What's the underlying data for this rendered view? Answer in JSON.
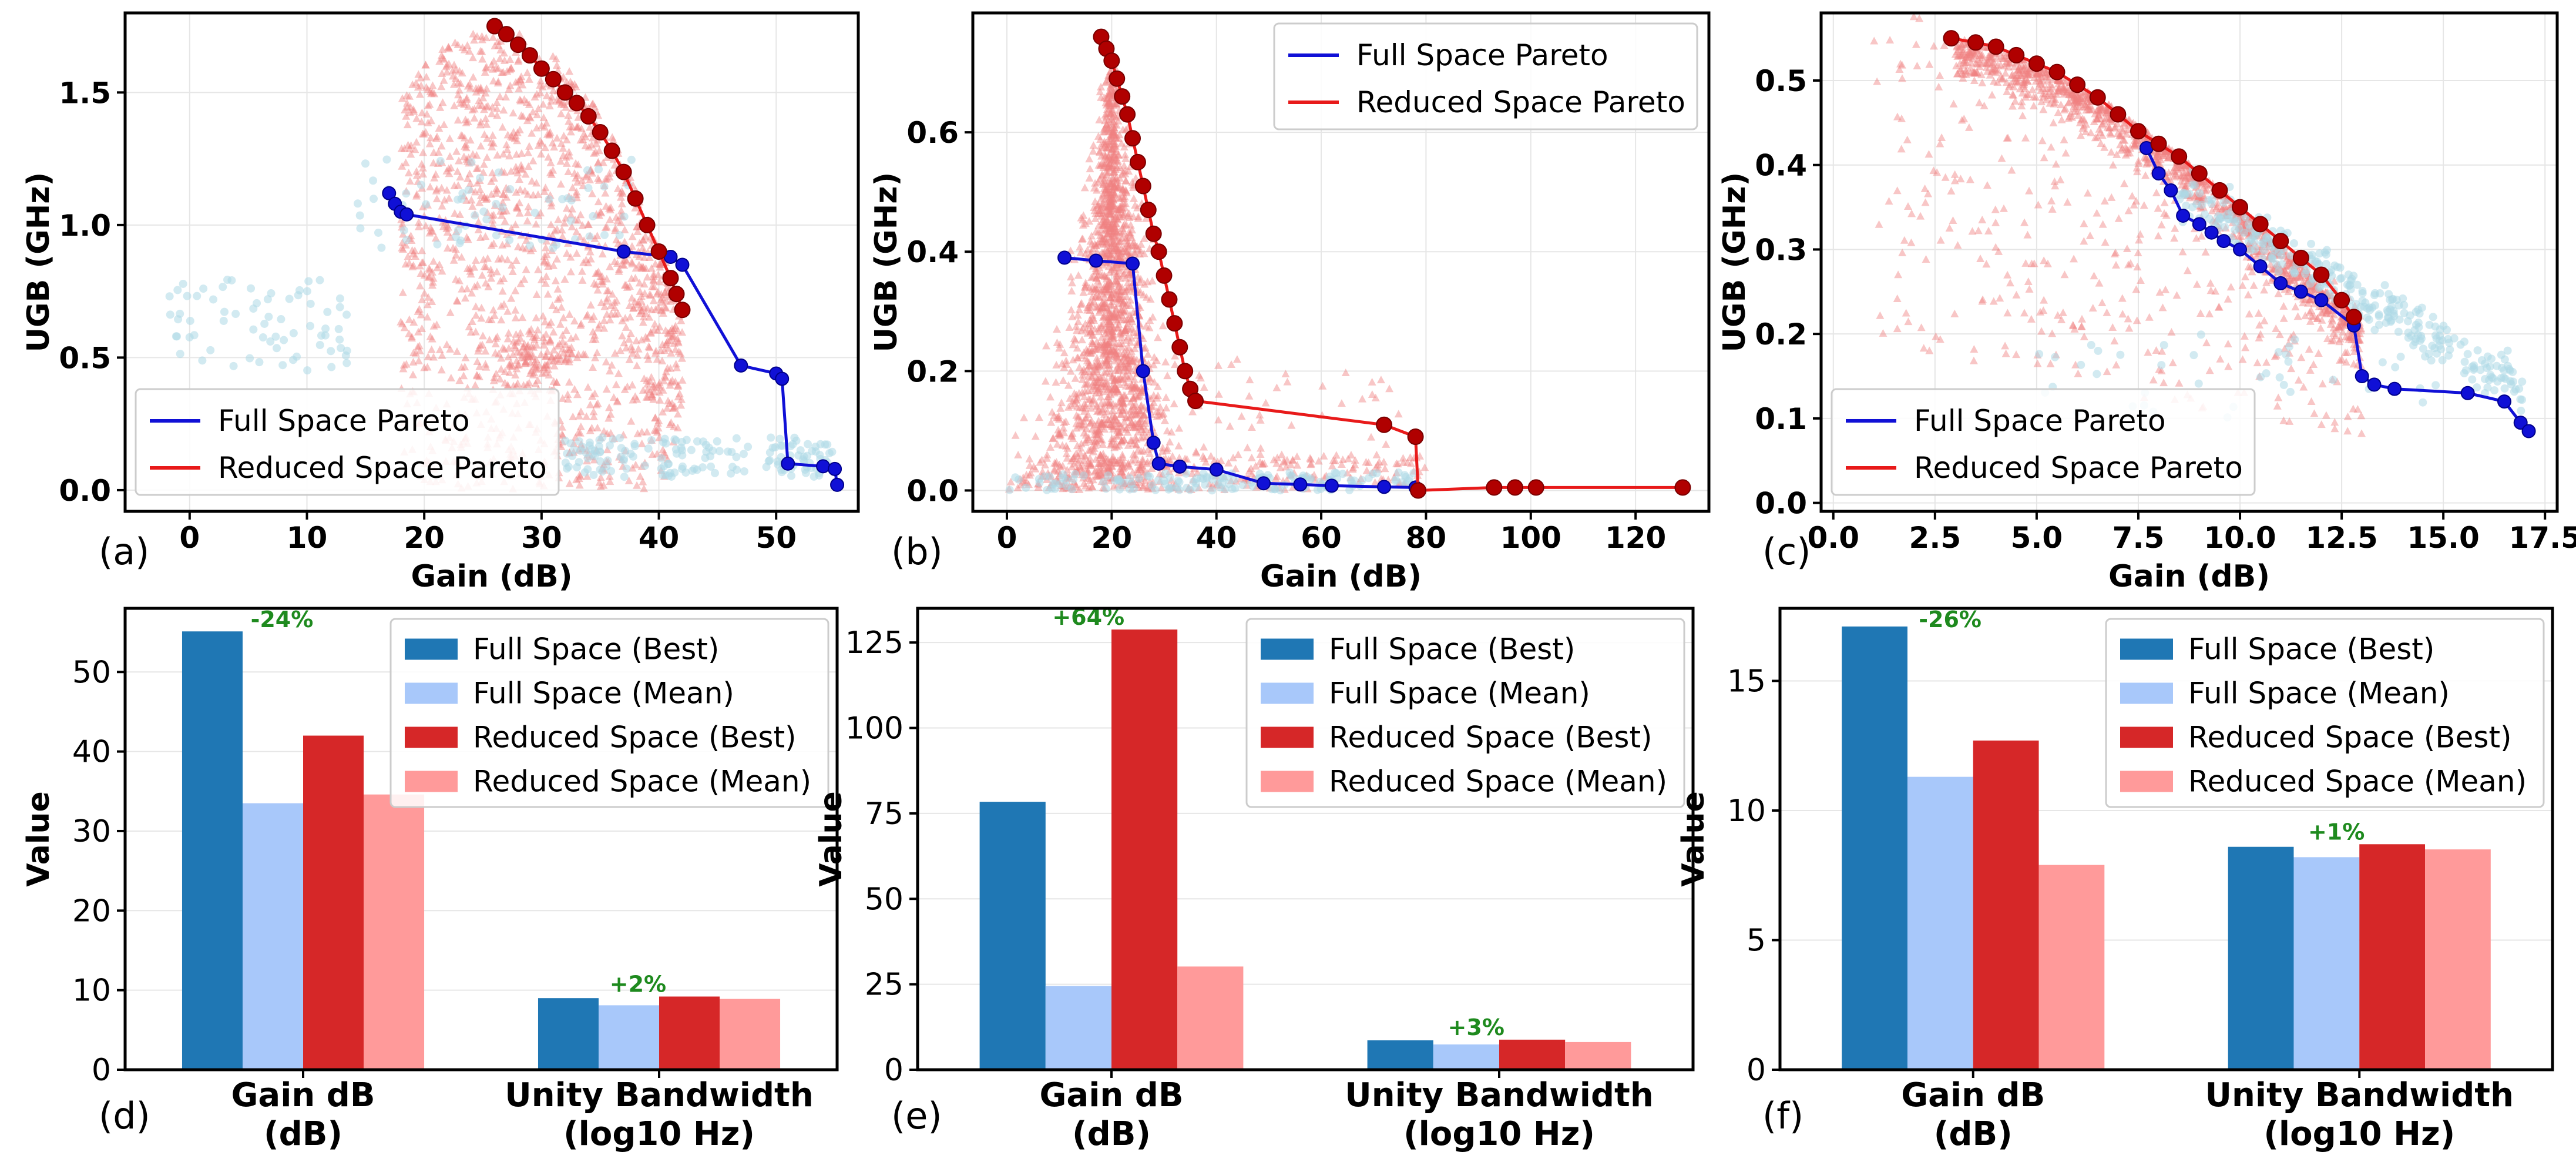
{
  "colors": {
    "full_pareto": "#1010d6",
    "full_points": "#add8e6",
    "reduced_pareto": "#e81a1a",
    "reduced_points": "#f08080",
    "reduced_pareto_marker": "#b00000",
    "full_best": "#1f77b4",
    "full_mean": "#a8c8fa",
    "reduced_best": "#d62728",
    "reduced_mean": "#ff9a9a",
    "annotation": "#1e8a1e"
  },
  "chart_data": [
    {
      "type": "scatter",
      "panel": "(a)",
      "xlabel": "Gain (dB)",
      "ylabel": "UGB (GHz)",
      "xlim": [
        -5.5,
        57
      ],
      "ylim": [
        -0.08,
        1.8
      ],
      "xticks": [
        0,
        10,
        20,
        30,
        40,
        50
      ],
      "xtick_labels": [
        "0",
        "10",
        "20",
        "30",
        "40",
        "50"
      ],
      "yticks": [
        0,
        0.5,
        1.0,
        1.5
      ],
      "ytick_labels": [
        "0.0",
        "0.5",
        "1.0",
        "1.5"
      ],
      "legend_position": "bottom-left",
      "series": [
        {
          "name": "Full Space Pareto",
          "x": [
            17,
            17.5,
            18,
            18.5,
            37,
            41,
            42,
            47,
            50,
            50.5,
            51,
            54,
            55,
            55.2
          ],
          "y": [
            1.12,
            1.08,
            1.05,
            1.04,
            0.9,
            0.88,
            0.85,
            0.47,
            0.44,
            0.42,
            0.1,
            0.09,
            0.08,
            0.02
          ]
        },
        {
          "name": "Reduced Space Pareto",
          "x": [
            26,
            27,
            28,
            29,
            30,
            31,
            32,
            33,
            34,
            35,
            36,
            37,
            38,
            39,
            40,
            41,
            41.5,
            42
          ],
          "y": [
            1.75,
            1.72,
            1.68,
            1.64,
            1.59,
            1.55,
            1.5,
            1.46,
            1.41,
            1.35,
            1.28,
            1.2,
            1.1,
            1.0,
            0.9,
            0.8,
            0.74,
            0.68
          ]
        }
      ]
    },
    {
      "type": "scatter",
      "panel": "(b)",
      "xlabel": "Gain (dB)",
      "ylabel": "UGB (GHz)",
      "xlim": [
        -6.5,
        134
      ],
      "ylim": [
        -0.035,
        0.8
      ],
      "xticks": [
        0,
        20,
        40,
        60,
        80,
        100,
        120
      ],
      "xtick_labels": [
        "0",
        "20",
        "40",
        "60",
        "80",
        "100",
        "120"
      ],
      "yticks": [
        0,
        0.2,
        0.4,
        0.6
      ],
      "ytick_labels": [
        "0.0",
        "0.2",
        "0.4",
        "0.6"
      ],
      "legend_position": "top-right",
      "series": [
        {
          "name": "Full Space Pareto",
          "x": [
            11,
            17,
            24,
            26,
            28,
            29,
            33,
            40,
            49,
            56,
            62,
            72,
            78
          ],
          "y": [
            0.39,
            0.385,
            0.38,
            0.2,
            0.08,
            0.045,
            0.04,
            0.035,
            0.012,
            0.01,
            0.008,
            0.006,
            0.005
          ]
        },
        {
          "name": "Reduced Space Pareto",
          "x": [
            18,
            19,
            20,
            21,
            22,
            23,
            24,
            25,
            26,
            27,
            28,
            29,
            30,
            31,
            32,
            33,
            34,
            35,
            36,
            72,
            78,
            78.5,
            93,
            97,
            101,
            129
          ],
          "y": [
            0.76,
            0.74,
            0.72,
            0.69,
            0.66,
            0.63,
            0.59,
            0.55,
            0.51,
            0.47,
            0.43,
            0.4,
            0.36,
            0.32,
            0.28,
            0.24,
            0.2,
            0.17,
            0.15,
            0.11,
            0.09,
            0.0,
            0.005,
            0.005,
            0.005,
            0.005
          ]
        }
      ]
    },
    {
      "type": "scatter",
      "panel": "(c)",
      "xlabel": "Gain (dB)",
      "ylabel": "UGB (GHz)",
      "xlim": [
        -0.3,
        17.8
      ],
      "ylim": [
        -0.01,
        0.58
      ],
      "xticks": [
        0,
        2.5,
        5,
        7.5,
        10,
        12.5,
        15,
        17.5
      ],
      "xtick_labels": [
        "0.0",
        "2.5",
        "5.0",
        "7.5",
        "10.0",
        "12.5",
        "15.0",
        "17.5"
      ],
      "yticks": [
        0,
        0.1,
        0.2,
        0.3,
        0.4,
        0.5
      ],
      "ytick_labels": [
        "0.0",
        "0.1",
        "0.2",
        "0.3",
        "0.4",
        "0.5"
      ],
      "legend_position": "bottom-left",
      "series": [
        {
          "name": "Full Space Pareto",
          "x": [
            7.7,
            8.0,
            8.3,
            8.6,
            9.0,
            9.3,
            9.6,
            10.0,
            10.5,
            11.0,
            11.5,
            12.0,
            12.8,
            13.0,
            13.3,
            13.8,
            15.6,
            16.5,
            16.9,
            17.1
          ],
          "y": [
            0.42,
            0.39,
            0.37,
            0.34,
            0.33,
            0.32,
            0.31,
            0.3,
            0.28,
            0.26,
            0.25,
            0.24,
            0.21,
            0.15,
            0.14,
            0.135,
            0.13,
            0.12,
            0.095,
            0.085
          ]
        },
        {
          "name": "Reduced Space Pareto",
          "x": [
            2.9,
            3.5,
            4.0,
            4.5,
            5.0,
            5.5,
            6.0,
            6.5,
            7.0,
            7.5,
            8.0,
            8.5,
            9.0,
            9.5,
            10.0,
            10.5,
            11.0,
            11.5,
            12.0,
            12.5,
            12.8
          ],
          "y": [
            0.55,
            0.545,
            0.54,
            0.53,
            0.52,
            0.51,
            0.495,
            0.48,
            0.46,
            0.44,
            0.425,
            0.41,
            0.39,
            0.37,
            0.35,
            0.33,
            0.31,
            0.29,
            0.27,
            0.24,
            0.22
          ]
        }
      ]
    },
    {
      "type": "bar",
      "panel": "(d)",
      "ylabel": "Value",
      "categories": [
        "Gain dB\n(dB)",
        "Unity Bandwidth\n(log10 Hz)"
      ],
      "ylim": [
        0,
        58
      ],
      "yticks": [
        0,
        10,
        20,
        30,
        40,
        50
      ],
      "ytick_labels": [
        "0",
        "10",
        "20",
        "30",
        "40",
        "50"
      ],
      "legend_position": "top-right",
      "series": [
        {
          "name": "Full Space (Best)",
          "values": [
            55.1,
            9.0
          ]
        },
        {
          "name": "Full Space (Mean)",
          "values": [
            33.5,
            8.1
          ]
        },
        {
          "name": "Reduced Space (Best)",
          "values": [
            42.0,
            9.2
          ]
        },
        {
          "name": "Reduced Space (Mean)",
          "values": [
            34.6,
            8.9
          ]
        }
      ],
      "annotations": [
        "-24%",
        "+2%"
      ]
    },
    {
      "type": "bar",
      "panel": "(e)",
      "ylabel": "Value",
      "categories": [
        "Gain dB\n(dB)",
        "Unity Bandwidth\n(log10 Hz)"
      ],
      "ylim": [
        0,
        135
      ],
      "yticks": [
        0,
        25,
        50,
        75,
        100,
        125
      ],
      "ytick_labels": [
        "0",
        "25",
        "50",
        "75",
        "100",
        "125"
      ],
      "legend_position": "top-right",
      "series": [
        {
          "name": "Full Space (Best)",
          "values": [
            78.4,
            8.6
          ]
        },
        {
          "name": "Full Space (Mean)",
          "values": [
            24.5,
            7.4
          ]
        },
        {
          "name": "Reduced Space (Best)",
          "values": [
            128.8,
            8.8
          ]
        },
        {
          "name": "Reduced Space (Mean)",
          "values": [
            30.2,
            8.1
          ]
        }
      ],
      "annotations": [
        "+64%",
        "+3%"
      ]
    },
    {
      "type": "bar",
      "panel": "(f)",
      "ylabel": "Value",
      "categories": [
        "Gain dB\n(dB)",
        "Unity Bandwidth\n(log10 Hz)"
      ],
      "ylim": [
        0,
        17.8
      ],
      "yticks": [
        0,
        5,
        10,
        15
      ],
      "ytick_labels": [
        "0",
        "5",
        "10",
        "15"
      ],
      "legend_position": "top-right",
      "series": [
        {
          "name": "Full Space (Best)",
          "values": [
            17.1,
            8.6
          ]
        },
        {
          "name": "Full Space (Mean)",
          "values": [
            11.3,
            8.2
          ]
        },
        {
          "name": "Reduced Space (Best)",
          "values": [
            12.7,
            8.7
          ]
        },
        {
          "name": "Reduced Space (Mean)",
          "values": [
            7.9,
            8.5
          ]
        }
      ],
      "annotations": [
        "-26%",
        "+1%"
      ]
    }
  ]
}
